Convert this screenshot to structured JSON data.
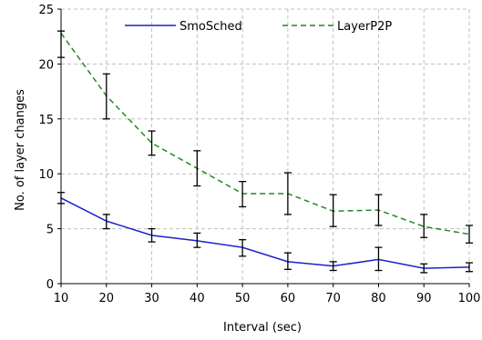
{
  "chart_data": {
    "type": "line",
    "xlabel": "Interval (sec)",
    "ylabel": "No. of layer changes",
    "xlim": [
      10,
      100
    ],
    "ylim": [
      0,
      25
    ],
    "x_ticks": [
      10,
      20,
      30,
      40,
      50,
      60,
      70,
      80,
      90,
      100
    ],
    "y_ticks": [
      0,
      5,
      10,
      15,
      20,
      25
    ],
    "grid": true,
    "legend_position": "top",
    "x": [
      10,
      20,
      30,
      40,
      50,
      60,
      70,
      80,
      90,
      100
    ],
    "series": [
      {
        "name": "SmoSched",
        "color": "#1f1fcf",
        "style": "solid",
        "values": [
          7.8,
          5.7,
          4.4,
          3.9,
          3.3,
          2.0,
          1.6,
          2.2,
          1.4,
          1.5
        ],
        "err_low": [
          7.3,
          5.0,
          3.8,
          3.3,
          2.5,
          1.3,
          1.2,
          1.2,
          1.0,
          1.1
        ],
        "err_high": [
          8.3,
          6.3,
          5.0,
          4.6,
          4.0,
          2.8,
          2.0,
          3.3,
          1.8,
          1.9
        ]
      },
      {
        "name": "LayerP2P",
        "color": "#1f8a1f",
        "style": "dashed",
        "values": [
          22.8,
          17.1,
          12.8,
          10.5,
          8.2,
          8.2,
          6.6,
          6.7,
          5.2,
          4.5
        ],
        "err_low": [
          20.6,
          15.0,
          11.7,
          8.9,
          7.0,
          6.3,
          5.2,
          5.3,
          4.2,
          3.7
        ],
        "err_high": [
          23.0,
          19.1,
          13.9,
          12.1,
          9.3,
          10.1,
          8.1,
          8.1,
          6.3,
          5.3
        ]
      }
    ]
  }
}
